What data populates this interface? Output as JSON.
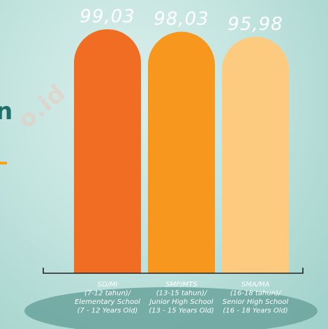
{
  "fragments": {
    "left_letter": "n",
    "watermark": "o.id"
  },
  "colors": {
    "bar_1": "#f26d24",
    "bar_2": "#f7971e",
    "bar_3": "#fdcb7f",
    "value_text": "#ffffff",
    "category_text": "#ffffff",
    "base_ellipse": "#6ea6a0",
    "axis": "#222222"
  },
  "chart_data": {
    "type": "bar",
    "title": "",
    "xlabel": "",
    "ylabel": "",
    "ylim": [
      0,
      100
    ],
    "categories": [
      [
        "SD/MI",
        "(7-12 tahun)/",
        "Elementary School",
        "(7 - 12 Years Old)"
      ],
      [
        "SMP/MTS",
        "(13-15 tahun)/",
        "Junior High School",
        "(13 - 15 Years Old)"
      ],
      [
        "SMA/MA",
        "(16-18 tahun)/",
        "Senior High School",
        "(16 - 18 Years Old)"
      ]
    ],
    "values": [
      99.03,
      98.03,
      95.98
    ],
    "value_labels": [
      "99,03",
      "98,03",
      "95,98"
    ]
  }
}
